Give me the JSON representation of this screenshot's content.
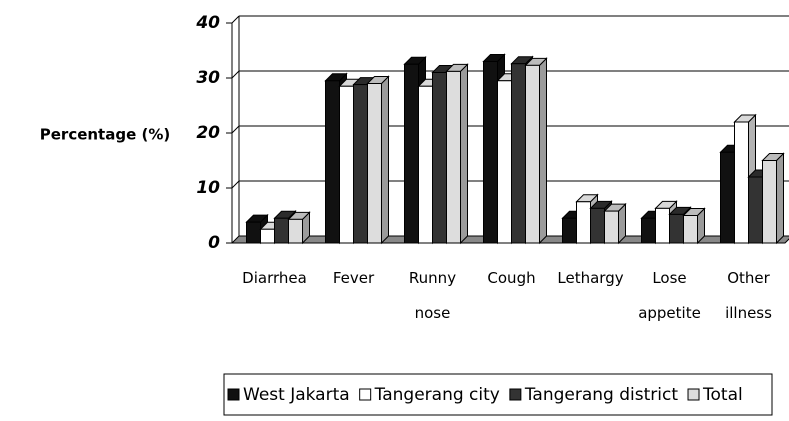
{
  "chart_data": {
    "type": "bar",
    "y_label": "Percentage (%)",
    "categories": [
      "Diarrhea",
      "Fever",
      "Runny nose",
      "Cough",
      "Lethargy",
      "Lose appetite",
      "Other illness"
    ],
    "series": [
      {
        "name": "West Jakarta",
        "color": "#111111",
        "values": [
          3.8,
          29.5,
          32.5,
          33,
          4.5,
          4.5,
          16.5
        ]
      },
      {
        "name": "Tangerang city",
        "color": "#ffffff",
        "values": [
          2.5,
          28.5,
          28.5,
          29.5,
          7.5,
          6.3,
          22
        ]
      },
      {
        "name": "Tangerang district",
        "color": "#333333",
        "values": [
          4.5,
          28.8,
          31,
          32.6,
          6.3,
          5.2,
          12
        ]
      },
      {
        "name": "Total",
        "color": "#dddddd",
        "values": [
          4.3,
          29,
          31.2,
          32.3,
          5.8,
          5,
          15
        ]
      }
    ],
    "ylim": [
      0,
      40
    ],
    "yticks": [
      0,
      10,
      20,
      30,
      40
    ],
    "grid": true,
    "legend": "bottom"
  }
}
